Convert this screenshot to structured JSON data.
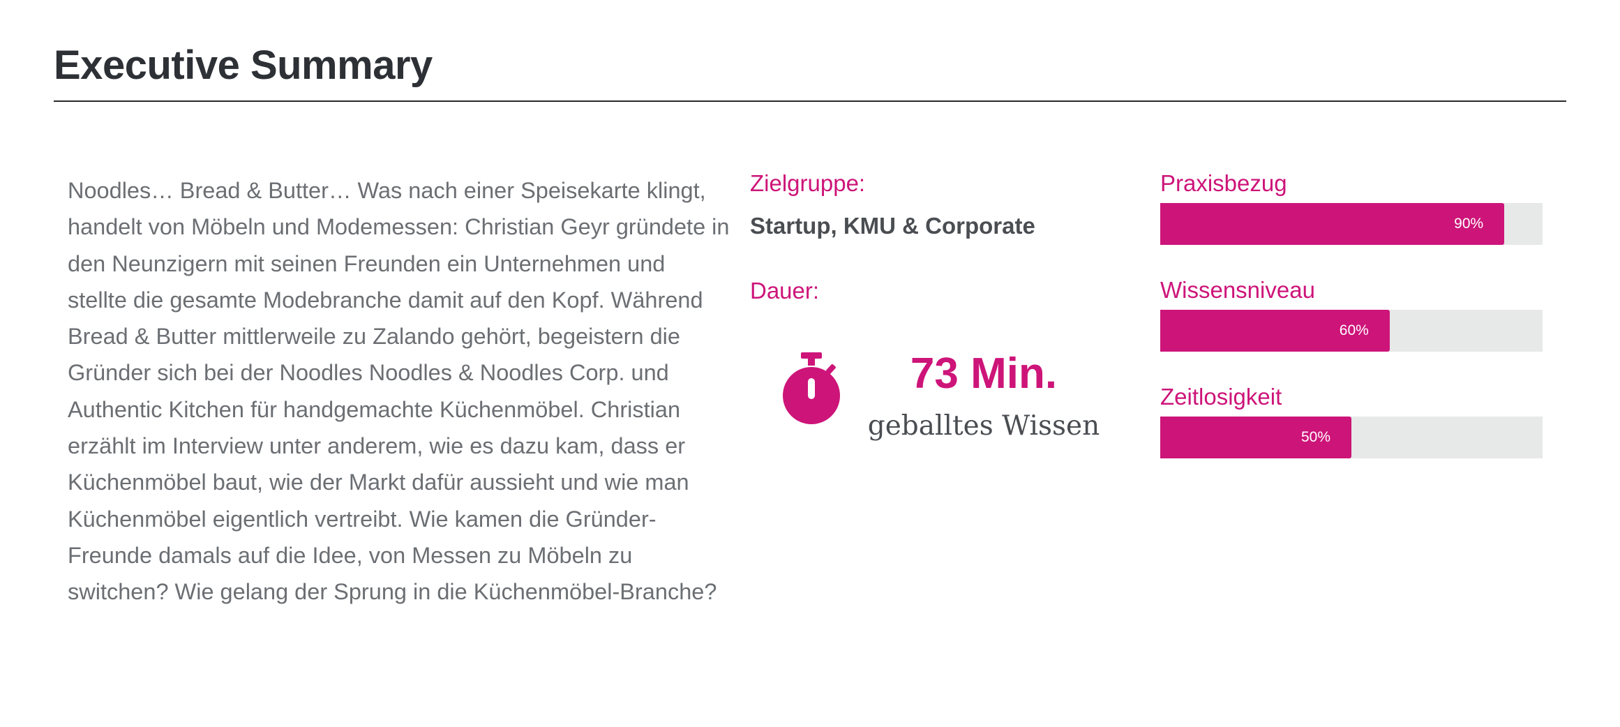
{
  "header": {
    "title": "Executive Summary"
  },
  "summary": {
    "text": "Noodles… Bread & Butter… Was nach einer Speisekarte klingt, handelt von Möbeln und Modemessen: Christian Geyr gründete in den Neunzigern mit seinen Freunden ein Unternehmen und stellte die gesamte Modebranche damit auf den Kopf. Während Bread & Butter mittlerweile zu Zalando gehört, begeistern die Gründer sich bei der Noodles Noodles & Noodles Corp. und Authentic Kitchen für handgemachte Küchenmöbel. Christian erzählt im Interview unter anderem, wie es dazu kam, dass er Küchenmöbel baut, wie der Markt dafür aussieht und wie man Küchenmöbel eigentlich vertreibt. Wie kamen die Gründer-Freunde damals auf die Idee, von Messen zu Möbeln zu switchen? Wie gelang der Sprung in die Küchenmöbel-Branche?"
  },
  "meta": {
    "audience_label": "Zielgruppe:",
    "audience_value": "Startup, KMU & Corporate",
    "duration_label": "Dauer:",
    "duration_icon": "stopwatch-icon",
    "duration_value": "73 Min.",
    "duration_caption": "geballtes Wissen"
  },
  "ratings": [
    {
      "label": "Praxisbezug",
      "percent": 90,
      "percent_label": "90%"
    },
    {
      "label": "Wissensniveau",
      "percent": 60,
      "percent_label": "60%"
    },
    {
      "label": "Zeitlosigkeit",
      "percent": 50,
      "percent_label": "50%"
    }
  ],
  "colors": {
    "accent": "#cd1479",
    "track": "#e7e8e8",
    "heading": "#2d3035",
    "body_text": "#6b6e72"
  }
}
